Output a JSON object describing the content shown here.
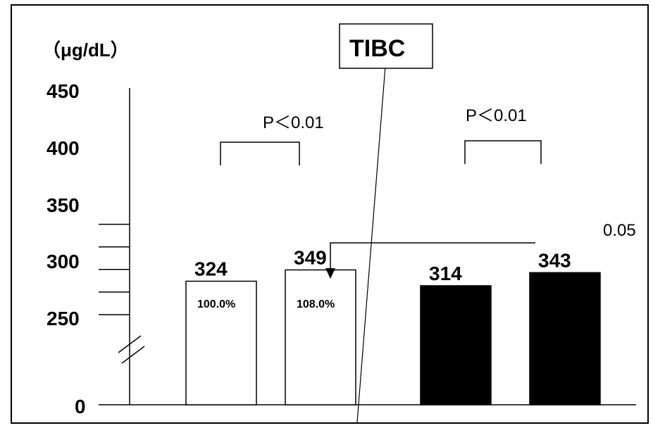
{
  "chart_data": {
    "type": "bar",
    "title": "TIBC",
    "unit_label": "（μg/dL）",
    "y_ticks": [
      "0",
      "250",
      "300",
      "350",
      "400",
      "450"
    ],
    "y_axis_break": true,
    "bars": [
      {
        "value": 324,
        "label": "324",
        "percent": "100.0%",
        "fill": "#ffffff"
      },
      {
        "value": 349,
        "label": "349",
        "percent": "108.0%",
        "fill": "#ffffff"
      },
      {
        "value": 314,
        "label": "314",
        "percent": "",
        "fill": "#000000"
      },
      {
        "value": 343,
        "label": "343",
        "percent": "",
        "fill": "#000000"
      }
    ],
    "significance": [
      {
        "pair": [
          0,
          1
        ],
        "label": "P＜0.01"
      },
      {
        "pair": [
          2,
          3
        ],
        "label": "P＜0.01"
      }
    ],
    "annotation": {
      "from_bar": 2,
      "to_bar": 1,
      "label_fragment": "0.05"
    }
  }
}
